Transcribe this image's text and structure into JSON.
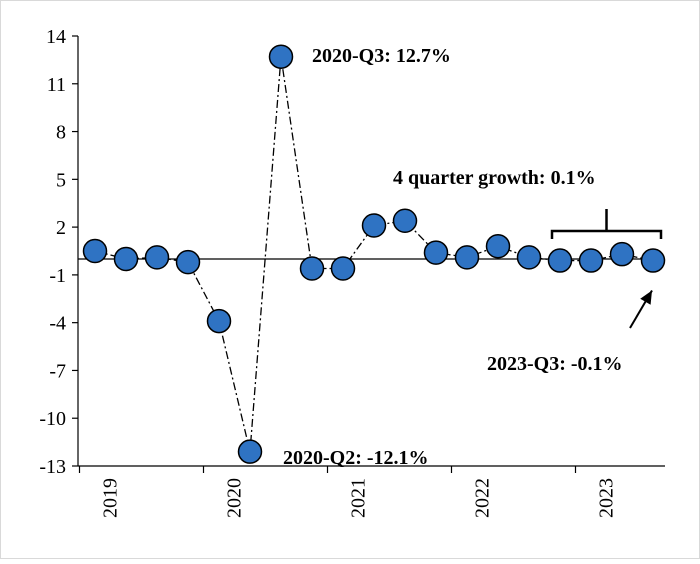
{
  "chart_data": {
    "type": "line",
    "title": "",
    "xlabel": "",
    "ylabel": "",
    "x": [
      "2019-Q1",
      "2019-Q2",
      "2019-Q3",
      "2019-Q4",
      "2020-Q1",
      "2020-Q2",
      "2020-Q3",
      "2020-Q4",
      "2021-Q1",
      "2021-Q2",
      "2021-Q3",
      "2021-Q4",
      "2022-Q1",
      "2022-Q2",
      "2022-Q3",
      "2022-Q4",
      "2023-Q1",
      "2023-Q2",
      "2023-Q3"
    ],
    "x_tick_labels": [
      "2019",
      "2020",
      "2021",
      "2022",
      "2023"
    ],
    "series": [
      {
        "values": [
          0.5,
          0.0,
          0.1,
          -0.2,
          -3.9,
          -12.1,
          12.7,
          -0.6,
          -0.6,
          2.1,
          2.4,
          0.4,
          0.1,
          0.8,
          0.1,
          -0.1,
          -0.1,
          0.3,
          -0.1
        ],
        "color": "#2f73c3",
        "marker": "circle",
        "line_style": "dash-dot"
      }
    ],
    "ylim": [
      -13,
      14
    ],
    "y_ticks": [
      14,
      11,
      8,
      5,
      2,
      -1,
      -4,
      -7,
      -10,
      -13
    ],
    "y_tick_labels": [
      "14",
      "11",
      "8",
      "5",
      "2",
      "-1",
      "-4",
      "-7",
      "-10",
      "-13"
    ],
    "grid": false,
    "annotations": [
      {
        "id": "q3-2020",
        "text": "2020-Q3: 12.7%"
      },
      {
        "id": "q2-2020",
        "text": "2020-Q2: -12.1%"
      },
      {
        "id": "four-quarter",
        "text": "4 quarter growth:  0.1%"
      },
      {
        "id": "q3-2023",
        "text": "2023-Q3: -0.1%"
      }
    ]
  }
}
